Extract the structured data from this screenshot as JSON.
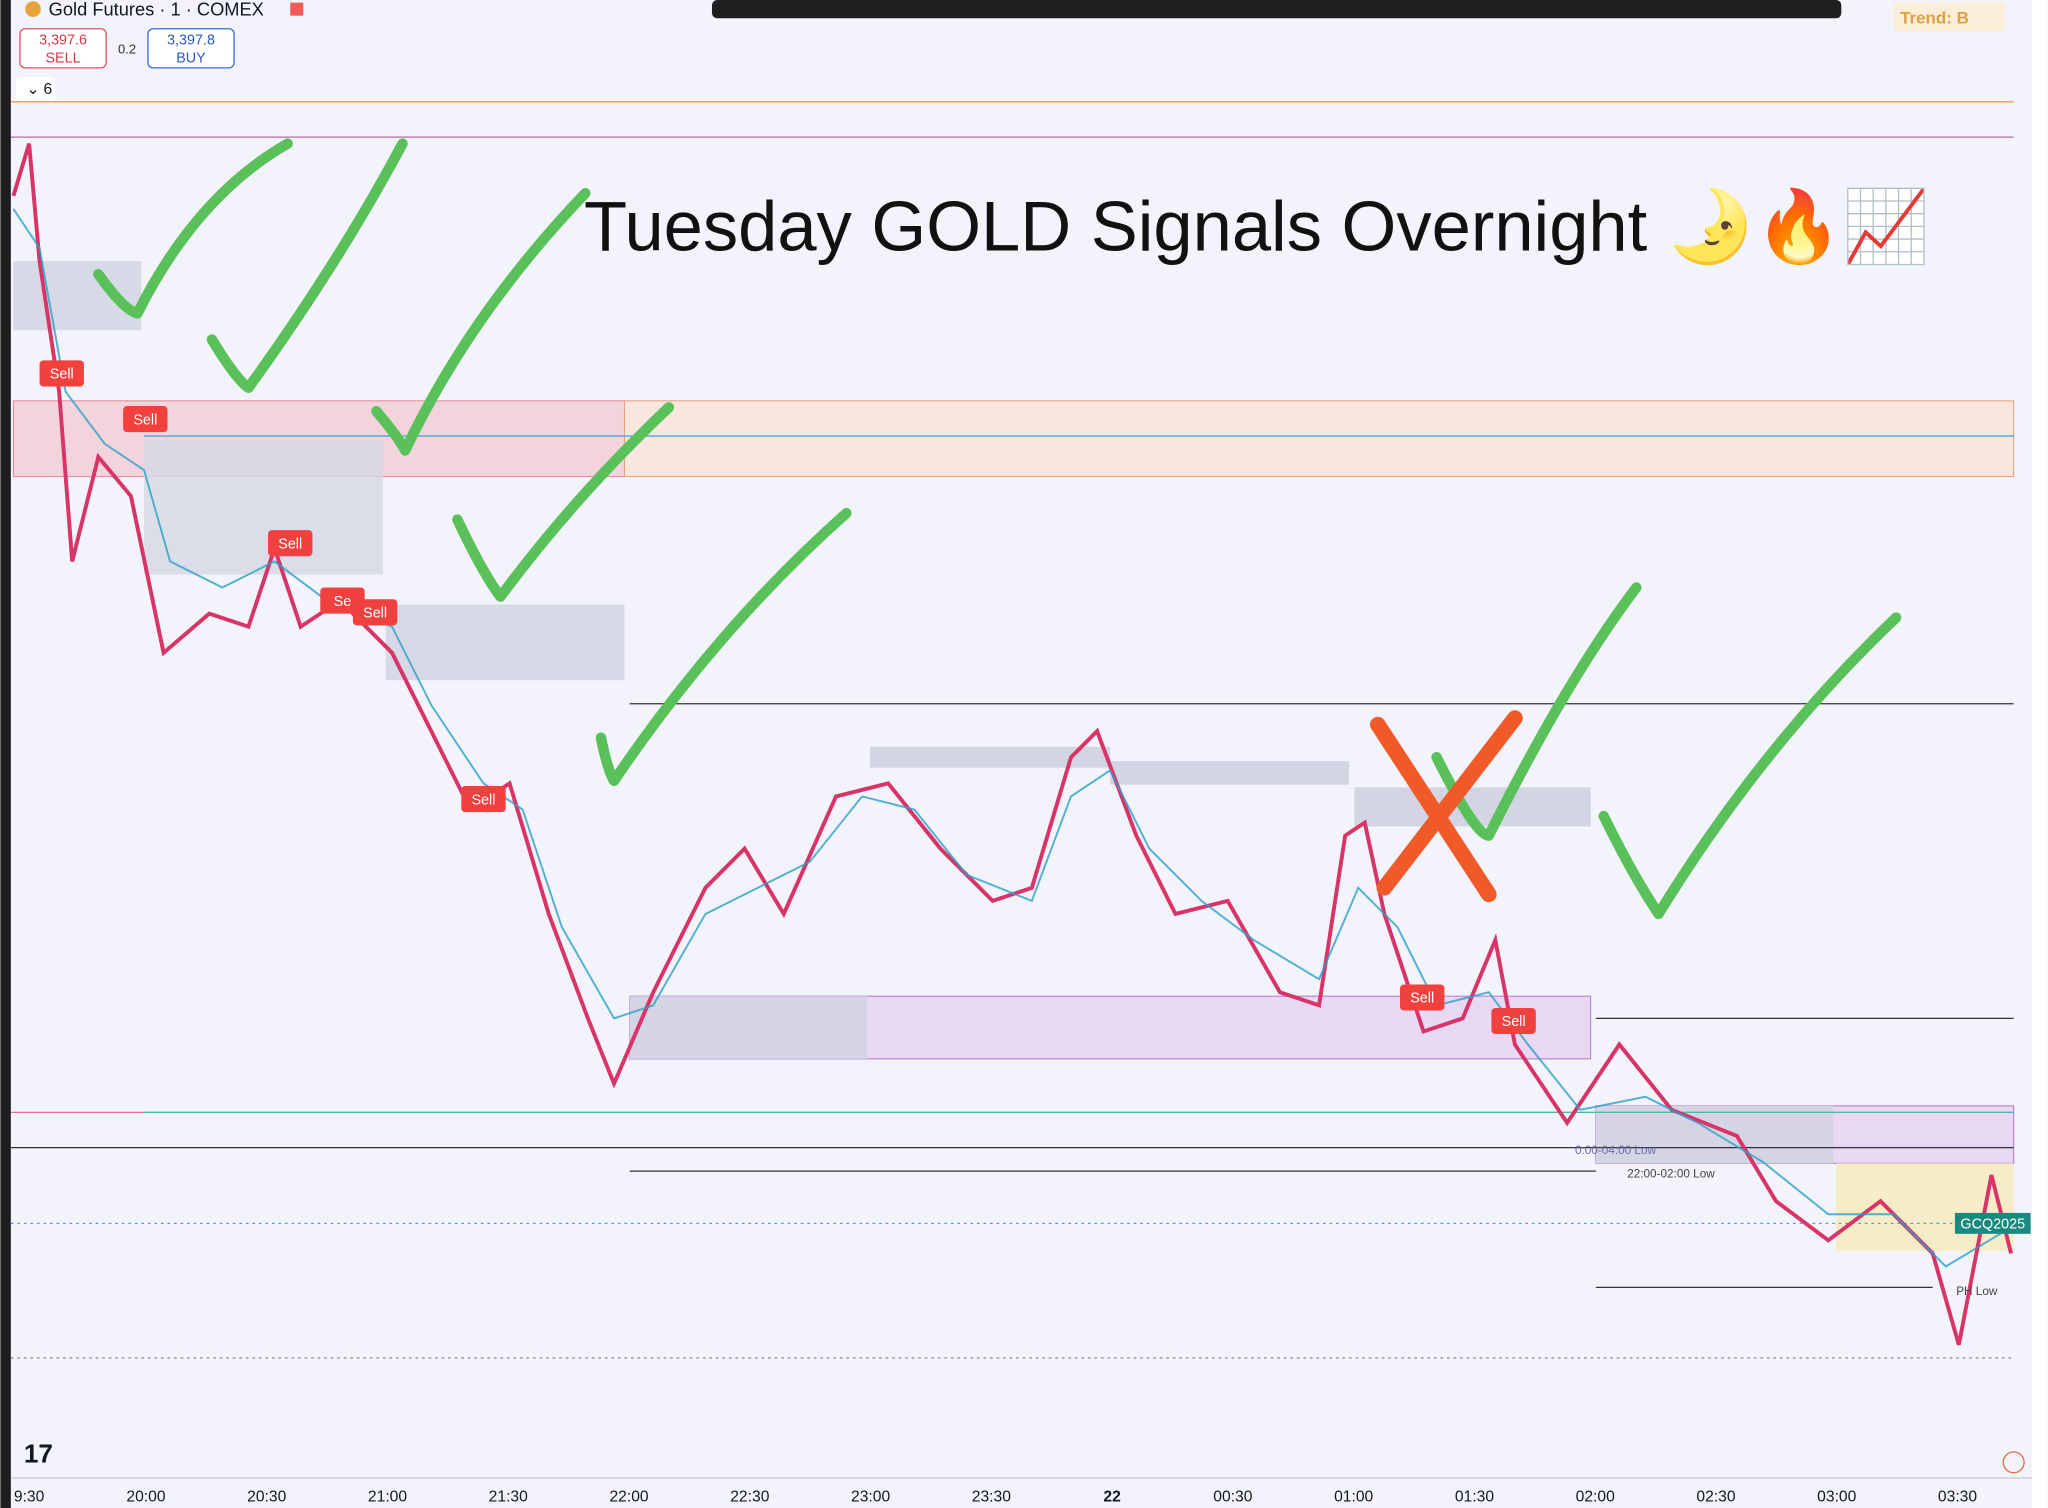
{
  "header": {
    "symbol": "Gold Futures · 1 · COMEX",
    "sell_price": "3,397.6",
    "sell_label": "SELL",
    "spread": "0.2",
    "buy_price": "3,397.8",
    "buy_label": "BUY",
    "indicators_count": "6",
    "trend": "Trend: B"
  },
  "annotation": {
    "title": "Tuesday GOLD Signals Overnight 🌛🔥📈"
  },
  "signals": [
    "Sell",
    "Sell",
    "Sell",
    "Se",
    "Sell",
    "Sell",
    "Sell",
    "Sell"
  ],
  "chart_labels": {
    "symbol_tag": "GCQ2025",
    "session_low": "22:00-02:00 Low",
    "session_low_2": "0:00-04:00 Low",
    "pl_low": "PH Low"
  },
  "time_axis": [
    "9:30",
    "20:00",
    "20:30",
    "21:00",
    "21:30",
    "22:00",
    "22:30",
    "23:00",
    "23:30",
    "22",
    "00:30",
    "01:00",
    "01:30",
    "02:00",
    "02:30",
    "03:00",
    "03:30"
  ]
}
